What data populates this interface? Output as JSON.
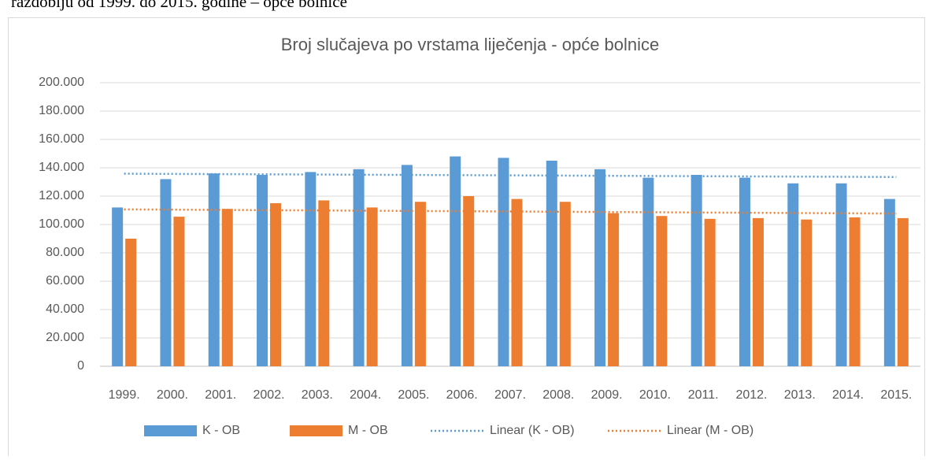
{
  "caption": "razdoblju od 1999. do 2015. godine – opće bolnice",
  "chart_data": {
    "type": "bar",
    "title": "Broj slučajeva po vrstama liječenja - opće bolnice",
    "categories": [
      "1999.",
      "2000.",
      "2001.",
      "2002.",
      "2003.",
      "2004.",
      "2005.",
      "2006.",
      "2007.",
      "2008.",
      "2009.",
      "2010.",
      "2011.",
      "2012.",
      "2013.",
      "2014.",
      "2015."
    ],
    "series": [
      {
        "name": "K - OB",
        "color": "#5b9bd5",
        "values": [
          112000,
          132000,
          136000,
          135000,
          137000,
          139000,
          142000,
          148000,
          147000,
          145000,
          139000,
          133000,
          135000,
          133000,
          129000,
          129000,
          118000
        ]
      },
      {
        "name": "M - OB",
        "color": "#ed7d31",
        "values": [
          90000,
          105500,
          111000,
          115000,
          117000,
          112000,
          116000,
          120000,
          118000,
          116000,
          108000,
          106000,
          104000,
          104500,
          103500,
          105000,
          104500
        ]
      }
    ],
    "trendlines": [
      {
        "name": "Linear (K - OB)",
        "color": "#5b9bd5",
        "series": 0,
        "kind": "linear"
      },
      {
        "name": "Linear (M - OB)",
        "color": "#ed7d31",
        "series": 1,
        "kind": "linear"
      }
    ],
    "ylim": [
      0,
      200000
    ],
    "yticks": [
      0,
      {
        "value": 20000,
        "label": "20.000"
      },
      {
        "value": 40000,
        "label": "40.000"
      },
      {
        "value": 60000,
        "label": "60.000"
      },
      {
        "value": 80000,
        "label": "80.000"
      },
      {
        "value": 100000,
        "label": "100.000"
      },
      {
        "value": 120000,
        "label": "120.000"
      },
      {
        "value": 140000,
        "label": "140.000"
      },
      {
        "value": 160000,
        "label": "160.000"
      },
      {
        "value": 180000,
        "label": "180.000"
      },
      {
        "value": 200000,
        "label": "200.000"
      }
    ],
    "grid": true,
    "legend": "bottom"
  }
}
